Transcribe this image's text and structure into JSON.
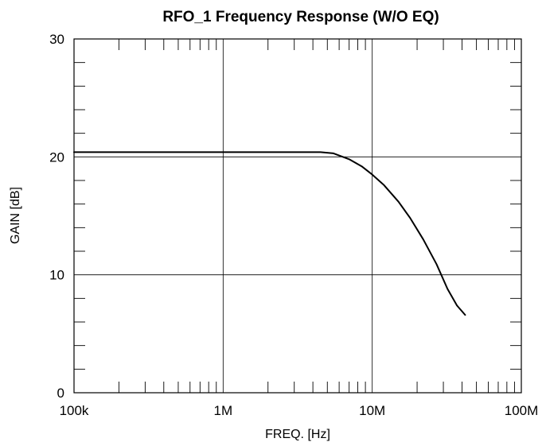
{
  "chart_data": {
    "type": "line",
    "title": "RFO_1 Frequency Response (W/O EQ)",
    "xlabel": "FREQ. [Hz]",
    "ylabel": "GAIN [dB]",
    "x_scale": "log",
    "xlim": [
      100000,
      100000000
    ],
    "ylim": [
      0,
      30
    ],
    "x_ticks": [
      {
        "value": 100000,
        "label": "100k"
      },
      {
        "value": 1000000,
        "label": "1M"
      },
      {
        "value": 10000000,
        "label": "10M"
      },
      {
        "value": 100000000,
        "label": "100M"
      }
    ],
    "y_ticks": [
      {
        "value": 0,
        "label": "0"
      },
      {
        "value": 10,
        "label": "10"
      },
      {
        "value": 20,
        "label": "20"
      },
      {
        "value": 30,
        "label": "30"
      }
    ],
    "grid": true,
    "series": [
      {
        "points": [
          [
            100000,
            20.4
          ],
          [
            1000000,
            20.4
          ],
          [
            3000000,
            20.4
          ],
          [
            4500000,
            20.4
          ],
          [
            5500000,
            20.3
          ],
          [
            7000000,
            19.8
          ],
          [
            8500000,
            19.2
          ],
          [
            10000000,
            18.5
          ],
          [
            12000000,
            17.6
          ],
          [
            15000000,
            16.2
          ],
          [
            18000000,
            14.8
          ],
          [
            22000000,
            13.0
          ],
          [
            27000000,
            10.9
          ],
          [
            32000000,
            8.8
          ],
          [
            37000000,
            7.4
          ],
          [
            42000000,
            6.6
          ]
        ]
      }
    ]
  }
}
